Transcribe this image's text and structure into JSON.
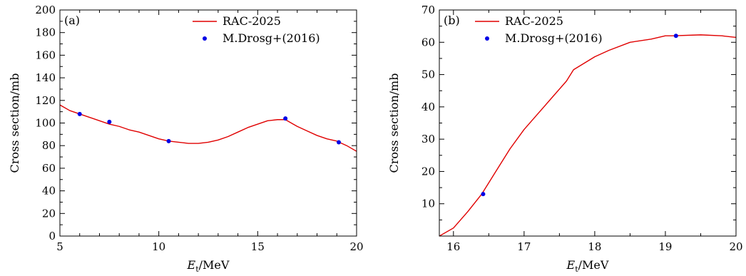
{
  "chart_data": [
    {
      "type": "line",
      "panel_label": "(a)",
      "xlabel_main": "E",
      "xlabel_sub": "t",
      "xlabel_unit": "/MeV",
      "ylabel": "Cross section/mb",
      "xlim": [
        5,
        20
      ],
      "ylim": [
        0,
        200
      ],
      "xticks": [
        5,
        10,
        15,
        20
      ],
      "yticks": [
        0,
        20,
        40,
        60,
        80,
        100,
        120,
        140,
        160,
        180,
        200
      ],
      "x_minor_step": 1,
      "y_minor_step": 10,
      "legend_position": "top-right",
      "series": [
        {
          "name": "RAC-2025",
          "kind": "line",
          "color": "#e00000",
          "x": [
            5,
            5.5,
            6,
            6.5,
            7,
            7.5,
            8,
            8.5,
            9,
            9.5,
            10,
            10.5,
            11,
            11.5,
            12,
            12.5,
            13,
            13.5,
            14,
            14.5,
            15,
            15.5,
            16,
            16.4,
            16.8,
            17,
            17.5,
            18,
            18.5,
            19,
            19.5,
            20
          ],
          "y": [
            116,
            111,
            108,
            105,
            102,
            99,
            97,
            94,
            92,
            89,
            86,
            84,
            83,
            82,
            82,
            83,
            85,
            88,
            92,
            96,
            99,
            102,
            103,
            103,
            99,
            97,
            93,
            89,
            86,
            84,
            80,
            75
          ]
        },
        {
          "name": "M.Drosg+(2016)",
          "kind": "scatter",
          "color": "#0000e6",
          "x": [
            6.0,
            7.5,
            10.5,
            16.4,
            19.1
          ],
          "y": [
            108,
            101,
            84,
            104,
            83
          ]
        }
      ]
    },
    {
      "type": "line",
      "panel_label": "(b)",
      "xlabel_main": "E",
      "xlabel_sub": "t",
      "xlabel_unit": "/MeV",
      "ylabel": "Cross section/mb",
      "xlim": [
        15.8,
        20
      ],
      "ylim": [
        0,
        70
      ],
      "xticks": [
        16,
        17,
        18,
        19,
        20
      ],
      "yticks": [
        10,
        20,
        30,
        40,
        50,
        60,
        70
      ],
      "x_minor_step": 0.5,
      "y_minor_step": 5,
      "legend_position": "top-left",
      "series": [
        {
          "name": "RAC-2025",
          "kind": "line",
          "color": "#e00000",
          "x": [
            15.8,
            16.0,
            16.2,
            16.4,
            16.6,
            16.8,
            17.0,
            17.2,
            17.4,
            17.6,
            17.7,
            18.0,
            18.2,
            18.5,
            18.8,
            19.0,
            19.1,
            19.5,
            19.8,
            20.0
          ],
          "y": [
            0,
            2.5,
            7.5,
            13,
            20,
            27,
            33,
            38,
            43,
            48,
            51.5,
            55.5,
            57.5,
            60,
            61,
            62,
            62,
            62.3,
            62,
            61.5
          ]
        },
        {
          "name": "M.Drosg+(2016)",
          "kind": "scatter",
          "color": "#0000e6",
          "x": [
            16.42,
            19.15
          ],
          "y": [
            13,
            62
          ]
        }
      ]
    }
  ]
}
